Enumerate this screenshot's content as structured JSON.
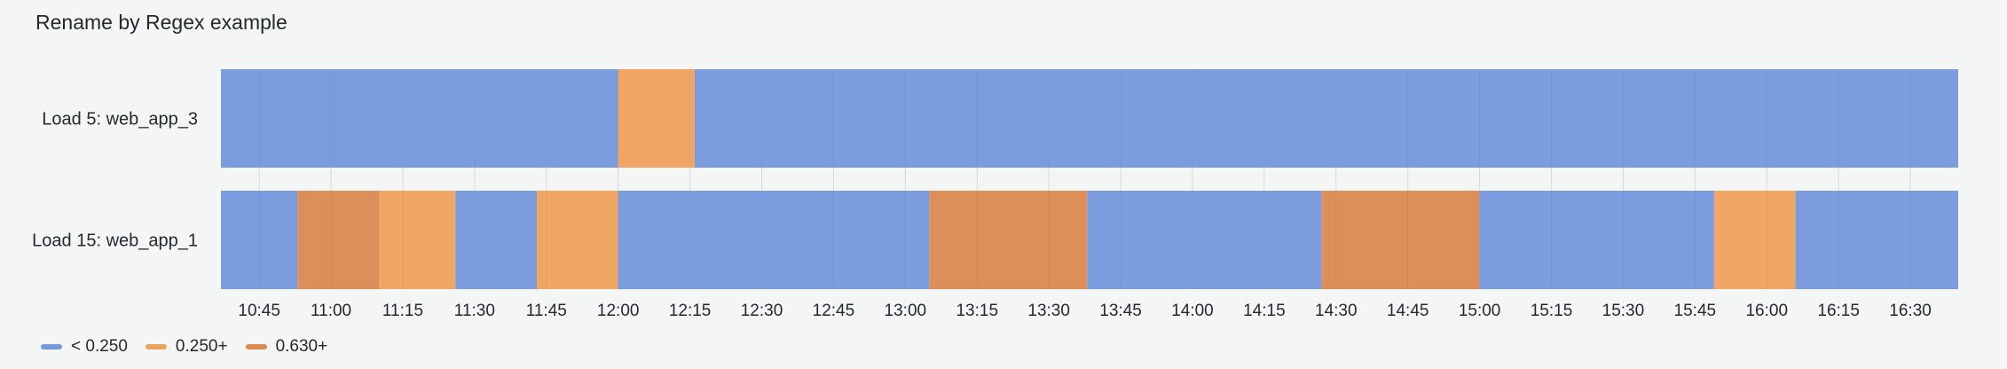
{
  "panel": {
    "title": "Rename by Regex example"
  },
  "colors": {
    "low": "#7799dc",
    "mid": "#efa25e",
    "high": "#dc8a52",
    "grid": "#d6d9dd"
  },
  "chart_data": {
    "type": "state-timeline",
    "title": "Rename by Regex example",
    "x_range": [
      "10:37",
      "16:40"
    ],
    "x_ticks": [
      "10:45",
      "11:00",
      "11:15",
      "11:30",
      "11:45",
      "12:00",
      "12:15",
      "12:30",
      "12:45",
      "13:00",
      "13:15",
      "13:30",
      "13:45",
      "14:00",
      "14:15",
      "14:30",
      "14:45",
      "15:00",
      "15:15",
      "15:30",
      "15:45",
      "16:00",
      "16:15",
      "16:30"
    ],
    "thresholds": [
      {
        "label": "< 0.250",
        "color": "#7799dc",
        "key": "low"
      },
      {
        "label": "0.250+",
        "color": "#efa25e",
        "key": "mid"
      },
      {
        "label": "0.630+",
        "color": "#dc8a52",
        "key": "high"
      }
    ],
    "series": [
      {
        "name": "Load 5: web_app_3",
        "segments": [
          {
            "start": "10:37",
            "end": "12:00",
            "state": "low"
          },
          {
            "start": "12:00",
            "end": "12:16",
            "state": "mid"
          },
          {
            "start": "12:16",
            "end": "16:40",
            "state": "low"
          }
        ]
      },
      {
        "name": "Load 15: web_app_1",
        "segments": [
          {
            "start": "10:37",
            "end": "10:53",
            "state": "low"
          },
          {
            "start": "10:53",
            "end": "11:10",
            "state": "high"
          },
          {
            "start": "11:10",
            "end": "11:26",
            "state": "mid"
          },
          {
            "start": "11:26",
            "end": "11:43",
            "state": "low"
          },
          {
            "start": "11:43",
            "end": "12:00",
            "state": "mid"
          },
          {
            "start": "12:00",
            "end": "13:05",
            "state": "low"
          },
          {
            "start": "13:05",
            "end": "13:38",
            "state": "high"
          },
          {
            "start": "13:38",
            "end": "14:27",
            "state": "low"
          },
          {
            "start": "14:27",
            "end": "15:00",
            "state": "high"
          },
          {
            "start": "15:00",
            "end": "15:49",
            "state": "low"
          },
          {
            "start": "15:49",
            "end": "16:06",
            "state": "mid"
          },
          {
            "start": "16:06",
            "end": "16:40",
            "state": "low"
          }
        ]
      }
    ],
    "legend_position": "bottom-left",
    "grid": true
  }
}
